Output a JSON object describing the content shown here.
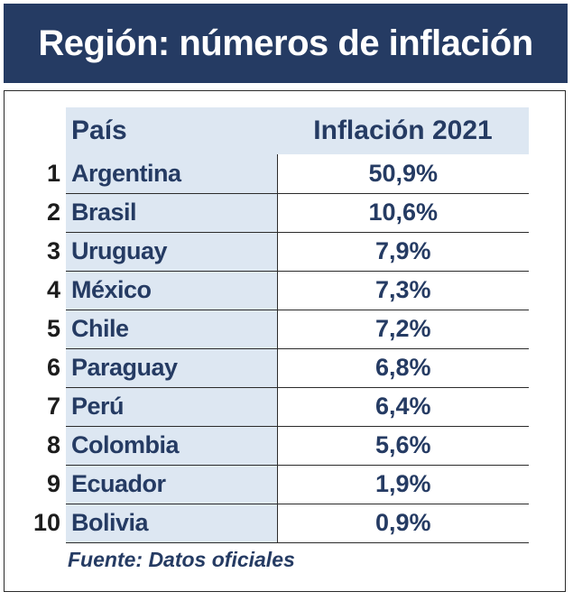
{
  "title": "Región: números de inflación",
  "colors": {
    "header_bg": "#253b63",
    "text": "#253b63",
    "country_bg": "#dde7f2"
  },
  "chart_data": {
    "type": "table",
    "title": "Región: números de inflación",
    "columns": [
      "País",
      "Inflación 2021"
    ],
    "rows": [
      {
        "rank": "1",
        "country": "Argentina",
        "value": "50,9%"
      },
      {
        "rank": "2",
        "country": "Brasil",
        "value": "10,6%"
      },
      {
        "rank": "3",
        "country": "Uruguay",
        "value": "7,9%"
      },
      {
        "rank": "4",
        "country": "México",
        "value": "7,3%"
      },
      {
        "rank": "5",
        "country": "Chile",
        "value": "7,2%"
      },
      {
        "rank": "6",
        "country": "Paraguay",
        "value": "6,8%"
      },
      {
        "rank": "7",
        "country": "Perú",
        "value": "6,4%"
      },
      {
        "rank": "8",
        "country": "Colombia",
        "value": "5,6%"
      },
      {
        "rank": "9",
        "country": "Ecuador",
        "value": "1,9%"
      },
      {
        "rank": "10",
        "country": "Bolivia",
        "value": "0,9%"
      }
    ],
    "source": "Fuente: Datos oficiales"
  }
}
